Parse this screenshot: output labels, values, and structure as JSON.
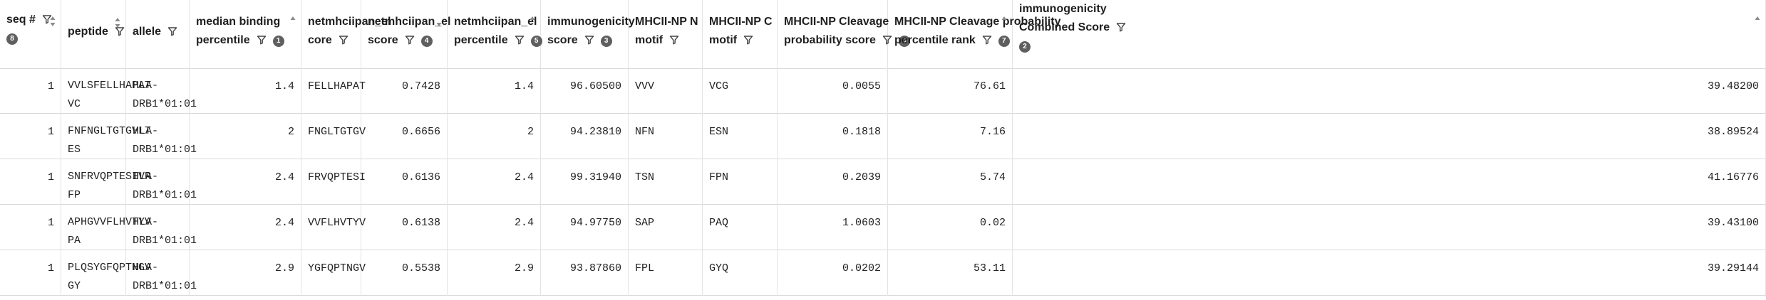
{
  "columns": [
    {
      "key": "seq",
      "lines": [
        "seq #"
      ],
      "badge": "8",
      "inline_filter_line": 0,
      "badge_line": 1,
      "align": "num"
    },
    {
      "key": "peptide",
      "lines": [
        "peptide"
      ],
      "badge": "",
      "inline_filter_line": 0,
      "align": "txt"
    },
    {
      "key": "allele",
      "lines": [
        "allele"
      ],
      "badge": "",
      "inline_filter_line": 0,
      "align": "txt"
    },
    {
      "key": "median_binding_percentile",
      "lines": [
        "median binding",
        "percentile"
      ],
      "badge": "1",
      "inline_filter_line": 1,
      "badge_line": 1,
      "align": "num"
    },
    {
      "key": "netmhciipan_el_core",
      "lines": [
        "netmhciipan_el",
        "core"
      ],
      "badge": "",
      "inline_filter_line": 1,
      "align": "txt"
    },
    {
      "key": "netmhciipan_el_score",
      "lines": [
        "netmhciipan_el",
        "score"
      ],
      "badge": "4",
      "inline_filter_line": 1,
      "badge_line": 1,
      "align": "num"
    },
    {
      "key": "netmhciipan_el_percentile",
      "lines": [
        "netmhciipan_el",
        "percentile"
      ],
      "badge": "5",
      "inline_filter_line": 1,
      "badge_line": 1,
      "align": "num"
    },
    {
      "key": "immunogenicity_score",
      "lines": [
        "immunogenicity",
        "score"
      ],
      "badge": "3",
      "inline_filter_line": 1,
      "badge_line": 1,
      "align": "num"
    },
    {
      "key": "mhcii_np_n_motif",
      "lines": [
        "MHCII-NP N",
        "motif"
      ],
      "badge": "",
      "inline_filter_line": 1,
      "align": "txt"
    },
    {
      "key": "mhcii_np_c_motif",
      "lines": [
        "MHCII-NP C",
        "motif"
      ],
      "badge": "",
      "inline_filter_line": 1,
      "align": "txt"
    },
    {
      "key": "mhcii_np_cleavage_probability_score",
      "lines": [
        "MHCII-NP Cleavage",
        "probability score"
      ],
      "badge": "6",
      "inline_filter_line": 1,
      "badge_line": 1,
      "align": "num"
    },
    {
      "key": "mhcii_np_cleavage_probability_percentile_rank",
      "lines": [
        "MHCII-NP Cleavage probability",
        "percentile rank"
      ],
      "badge": "7",
      "inline_filter_line": 1,
      "badge_line": 1,
      "align": "num"
    },
    {
      "key": "immunogenicity_combined_score",
      "lines": [
        "immunogenicity",
        "Combined Score"
      ],
      "badge": "2",
      "inline_filter_line": 1,
      "badge_line": 2,
      "align": "num"
    }
  ],
  "rows": [
    {
      "seq": "1",
      "peptide": [
        "VVLSFELLHAPAT",
        "VC"
      ],
      "allele": [
        "HLA-",
        "DRB1*01:01"
      ],
      "median_binding_percentile": "1.4",
      "netmhciipan_el_core": "FELLHAPAT",
      "netmhciipan_el_score": "0.7428",
      "netmhciipan_el_percentile": "1.4",
      "immunogenicity_score": "96.60500",
      "mhcii_np_n_motif": "VVV",
      "mhcii_np_c_motif": "VCG",
      "mhcii_np_cleavage_probability_score": "0.0055",
      "mhcii_np_cleavage_probability_percentile_rank": "76.61",
      "immunogenicity_combined_score": "39.48200"
    },
    {
      "seq": "1",
      "peptide": [
        "FNFNGLTGTGVLT",
        "ES"
      ],
      "allele": [
        "HLA-",
        "DRB1*01:01"
      ],
      "median_binding_percentile": "2",
      "netmhciipan_el_core": "FNGLTGTGV",
      "netmhciipan_el_score": "0.6656",
      "netmhciipan_el_percentile": "2",
      "immunogenicity_score": "94.23810",
      "mhcii_np_n_motif": "NFN",
      "mhcii_np_c_motif": "ESN",
      "mhcii_np_cleavage_probability_score": "0.1818",
      "mhcii_np_cleavage_probability_percentile_rank": "7.16",
      "immunogenicity_combined_score": "38.89524"
    },
    {
      "seq": "1",
      "peptide": [
        "SNFRVQPTESIVR",
        "FP"
      ],
      "allele": [
        "HLA-",
        "DRB1*01:01"
      ],
      "median_binding_percentile": "2.4",
      "netmhciipan_el_core": "FRVQPTESI",
      "netmhciipan_el_score": "0.6136",
      "netmhciipan_el_percentile": "2.4",
      "immunogenicity_score": "99.31940",
      "mhcii_np_n_motif": "TSN",
      "mhcii_np_c_motif": "FPN",
      "mhcii_np_cleavage_probability_score": "0.2039",
      "mhcii_np_cleavage_probability_percentile_rank": "5.74",
      "immunogenicity_combined_score": "41.16776"
    },
    {
      "seq": "1",
      "peptide": [
        "APHGVVFLHVTYV",
        "PA"
      ],
      "allele": [
        "HLA-",
        "DRB1*01:01"
      ],
      "median_binding_percentile": "2.4",
      "netmhciipan_el_core": "VVFLHVTYV",
      "netmhciipan_el_score": "0.6138",
      "netmhciipan_el_percentile": "2.4",
      "immunogenicity_score": "94.97750",
      "mhcii_np_n_motif": "SAP",
      "mhcii_np_c_motif": "PAQ",
      "mhcii_np_cleavage_probability_score": "1.0603",
      "mhcii_np_cleavage_probability_percentile_rank": "0.02",
      "immunogenicity_combined_score": "39.43100"
    },
    {
      "seq": "1",
      "peptide": [
        "PLQSYGFQPTNGV",
        "GY"
      ],
      "allele": [
        "HLA-",
        "DRB1*01:01"
      ],
      "median_binding_percentile": "2.9",
      "netmhciipan_el_core": "YGFQPTNGV",
      "netmhciipan_el_score": "0.5538",
      "netmhciipan_el_percentile": "2.9",
      "immunogenicity_score": "93.87860",
      "mhcii_np_n_motif": "FPL",
      "mhcii_np_c_motif": "GYQ",
      "mhcii_np_cleavage_probability_score": "0.0202",
      "mhcii_np_cleavage_probability_percentile_rank": "53.11",
      "immunogenicity_combined_score": "39.29144"
    }
  ],
  "icons": {
    "filter": "filter-icon",
    "sort": "sort-icon"
  },
  "colors": {
    "badge": "#5f5f5f",
    "border": "#d9d9d9"
  }
}
